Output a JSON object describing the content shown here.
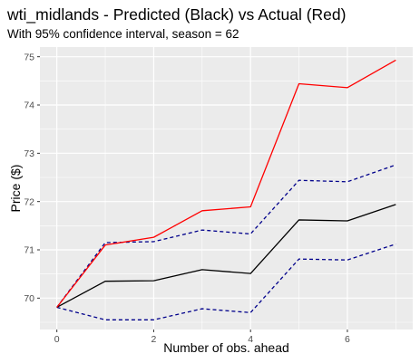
{
  "chart_data": {
    "type": "line",
    "title": "wti_midlands - Predicted (Black) vs Actual (Red)",
    "subtitle": "With 95% confidence interval, season = 62",
    "xlabel": "Number of obs. ahead",
    "ylabel": "Price ($)",
    "xlim": [
      -0.35,
      7.35
    ],
    "ylim": [
      69.35,
      75.2
    ],
    "x_ticks": [
      0,
      2,
      4,
      6
    ],
    "y_ticks": [
      70,
      71,
      72,
      73,
      74,
      75
    ],
    "x": [
      0,
      1,
      2,
      3,
      4,
      5,
      6,
      7
    ],
    "series": [
      {
        "color": "#ff0000",
        "style": "solid",
        "values": [
          69.81,
          71.1,
          71.26,
          71.81,
          71.89,
          74.44,
          74.36,
          74.93
        ]
      },
      {
        "color": "#000000",
        "style": "solid",
        "values": [
          69.81,
          70.35,
          70.36,
          70.59,
          70.51,
          71.62,
          71.6,
          71.94
        ]
      },
      {
        "color": "#00008b",
        "style": "dashed",
        "values": [
          69.81,
          71.15,
          71.17,
          71.41,
          71.33,
          72.44,
          72.41,
          72.76
        ]
      },
      {
        "color": "#00008b",
        "style": "dashed",
        "values": [
          69.81,
          69.55,
          69.55,
          69.78,
          69.7,
          70.81,
          70.79,
          71.12
        ]
      }
    ],
    "grid": true,
    "panel_background": "#ebebeb",
    "gridline_color": "#ffffff"
  }
}
